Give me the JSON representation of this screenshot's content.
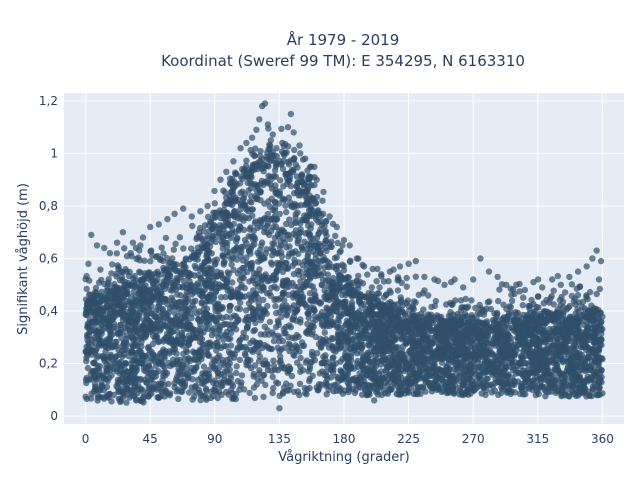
{
  "chart_data": {
    "type": "scatter",
    "title_lines": [
      "År 1979 - 2019",
      "Koordinat (Sweref 99 TM): E 354295, N 6163310"
    ],
    "xlabel": "Vågriktning (grader)",
    "ylabel": "Signifikant våghöjd (m)",
    "xlim": [
      -15,
      375
    ],
    "ylim": [
      -0.03,
      1.23
    ],
    "xticks": [
      0,
      45,
      90,
      135,
      180,
      225,
      270,
      315,
      360
    ],
    "xtick_labels": [
      "0",
      "45",
      "90",
      "135",
      "180",
      "225",
      "270",
      "315",
      "360"
    ],
    "yticks": [
      0,
      0.2,
      0.4,
      0.6,
      0.8,
      1,
      1.2
    ],
    "ytick_labels": [
      "0",
      "0,2",
      "0,4",
      "0,6",
      "0,8",
      "1",
      "1,2"
    ],
    "grid": true,
    "legend": "none",
    "colors": {
      "plot_bg": "#e5ecf6",
      "grid": "#ffffff",
      "marker": "#2f4f6a",
      "text": "#2a3f5f"
    },
    "marker_opacity": 0.7,
    "density_envelope": {
      "x": [
        0,
        10,
        20,
        30,
        40,
        50,
        60,
        70,
        80,
        90,
        100,
        110,
        120,
        130,
        140,
        150,
        160,
        170,
        180,
        190,
        200,
        210,
        220,
        230,
        240,
        250,
        260,
        270,
        280,
        290,
        300,
        310,
        320,
        330,
        340,
        350,
        360
      ],
      "y_low": [
        0.05,
        0.05,
        0.05,
        0.05,
        0.05,
        0.06,
        0.06,
        0.06,
        0.06,
        0.06,
        0.06,
        0.06,
        0.07,
        0.07,
        0.07,
        0.07,
        0.08,
        0.08,
        0.08,
        0.08,
        0.08,
        0.08,
        0.08,
        0.08,
        0.08,
        0.08,
        0.08,
        0.08,
        0.08,
        0.08,
        0.08,
        0.08,
        0.07,
        0.07,
        0.07,
        0.07,
        0.07
      ],
      "y_high": [
        0.44,
        0.46,
        0.48,
        0.5,
        0.52,
        0.55,
        0.56,
        0.58,
        0.62,
        0.72,
        0.82,
        0.9,
        0.95,
        0.97,
        0.95,
        0.9,
        0.8,
        0.65,
        0.52,
        0.46,
        0.44,
        0.42,
        0.4,
        0.38,
        0.37,
        0.36,
        0.36,
        0.36,
        0.36,
        0.37,
        0.38,
        0.38,
        0.38,
        0.38,
        0.38,
        0.4,
        0.4
      ]
    },
    "outliers": [
      {
        "x": 2,
        "y": 0.58
      },
      {
        "x": 4,
        "y": 0.69
      },
      {
        "x": 8,
        "y": 0.65
      },
      {
        "x": 13,
        "y": 0.64
      },
      {
        "x": 17,
        "y": 0.62
      },
      {
        "x": 22,
        "y": 0.66
      },
      {
        "x": 26,
        "y": 0.7
      },
      {
        "x": 33,
        "y": 0.66
      },
      {
        "x": 40,
        "y": 0.68
      },
      {
        "x": 45,
        "y": 0.72
      },
      {
        "x": 51,
        "y": 0.73
      },
      {
        "x": 57,
        "y": 0.75
      },
      {
        "x": 62,
        "y": 0.77
      },
      {
        "x": 68,
        "y": 0.79
      },
      {
        "x": 74,
        "y": 0.76
      },
      {
        "x": 80,
        "y": 0.78
      },
      {
        "x": 85,
        "y": 0.8
      },
      {
        "x": 90,
        "y": 0.81
      },
      {
        "x": 94,
        "y": 0.9
      },
      {
        "x": 98,
        "y": 0.93
      },
      {
        "x": 103,
        "y": 0.97
      },
      {
        "x": 108,
        "y": 1.02
      },
      {
        "x": 112,
        "y": 1.04
      },
      {
        "x": 116,
        "y": 1.06
      },
      {
        "x": 119,
        "y": 1.09
      },
      {
        "x": 121,
        "y": 1.13
      },
      {
        "x": 123,
        "y": 1.18
      },
      {
        "x": 125,
        "y": 1.19
      },
      {
        "x": 127,
        "y": 1.11
      },
      {
        "x": 129,
        "y": 1.05
      },
      {
        "x": 133,
        "y": 1.02
      },
      {
        "x": 137,
        "y": 1.04
      },
      {
        "x": 141,
        "y": 1.1
      },
      {
        "x": 143,
        "y": 1.15
      },
      {
        "x": 145,
        "y": 1.08
      },
      {
        "x": 149,
        "y": 1.03
      },
      {
        "x": 153,
        "y": 0.98
      },
      {
        "x": 157,
        "y": 0.95
      },
      {
        "x": 161,
        "y": 0.9
      },
      {
        "x": 165,
        "y": 0.82
      },
      {
        "x": 170,
        "y": 0.76
      },
      {
        "x": 175,
        "y": 0.72
      },
      {
        "x": 180,
        "y": 0.67
      },
      {
        "x": 184,
        "y": 0.65
      },
      {
        "x": 189,
        "y": 0.6
      },
      {
        "x": 194,
        "y": 0.57
      },
      {
        "x": 200,
        "y": 0.56
      },
      {
        "x": 206,
        "y": 0.54
      },
      {
        "x": 212,
        "y": 0.55
      },
      {
        "x": 219,
        "y": 0.57
      },
      {
        "x": 225,
        "y": 0.58
      },
      {
        "x": 230,
        "y": 0.59
      },
      {
        "x": 236,
        "y": 0.53
      },
      {
        "x": 243,
        "y": 0.52
      },
      {
        "x": 250,
        "y": 0.5
      },
      {
        "x": 257,
        "y": 0.52
      },
      {
        "x": 263,
        "y": 0.49
      },
      {
        "x": 270,
        "y": 0.52
      },
      {
        "x": 275,
        "y": 0.6
      },
      {
        "x": 281,
        "y": 0.55
      },
      {
        "x": 287,
        "y": 0.53
      },
      {
        "x": 293,
        "y": 0.5
      },
      {
        "x": 300,
        "y": 0.5
      },
      {
        "x": 306,
        "y": 0.48
      },
      {
        "x": 312,
        "y": 0.51
      },
      {
        "x": 318,
        "y": 0.49
      },
      {
        "x": 325,
        "y": 0.52
      },
      {
        "x": 331,
        "y": 0.5
      },
      {
        "x": 337,
        "y": 0.53
      },
      {
        "x": 343,
        "y": 0.55
      },
      {
        "x": 349,
        "y": 0.57
      },
      {
        "x": 353,
        "y": 0.6
      },
      {
        "x": 356,
        "y": 0.63
      },
      {
        "x": 359,
        "y": 0.59
      },
      {
        "x": 135,
        "y": 0.03
      },
      {
        "x": 201,
        "y": 0.06
      }
    ]
  }
}
